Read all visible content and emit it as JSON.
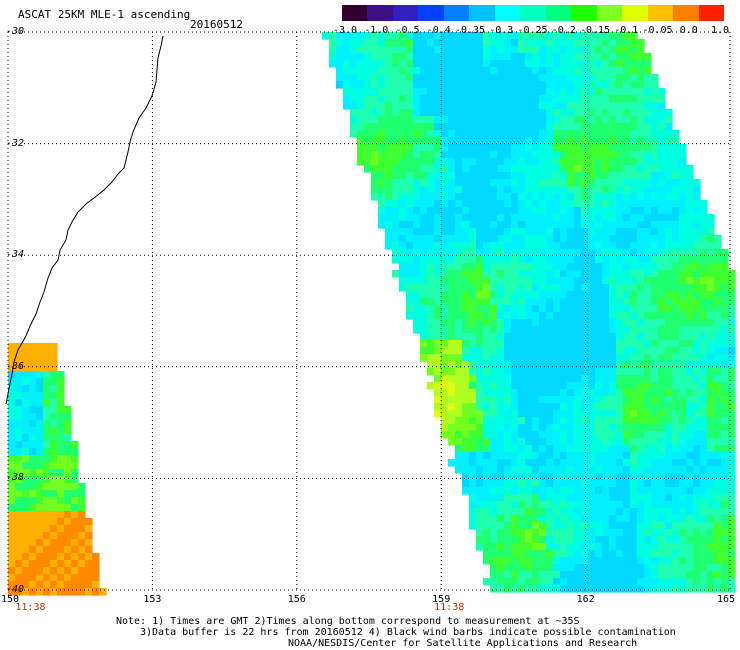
{
  "title": "ASCAT 25KM MLE-1 ascending",
  "date": "20160512",
  "colorbar": {
    "labels": [
      "-3.0",
      "-1.0",
      "-0.5",
      "-0.4",
      "-0.35",
      "-0.3",
      "-0.25",
      "-0.2",
      "-0.15",
      "-0.1",
      "-0.05",
      "0.0",
      "1.0"
    ],
    "colors": [
      "#300030",
      "#3c1080",
      "#3020c0",
      "#0040ff",
      "#0080ff",
      "#00c0ff",
      "#00ffff",
      "#00ffc0",
      "#00ff80",
      "#20ff00",
      "#80ff20",
      "#e0ff00",
      "#ffc000",
      "#ff8000",
      "#ff2000"
    ]
  },
  "map": {
    "lat_labels": [
      "-30",
      "-32",
      "-34",
      "-36",
      "-38",
      "-40"
    ],
    "lat_values": [
      -30,
      -32,
      -34,
      -36,
      -38,
      -40
    ],
    "lon_labels": [
      "150",
      "153",
      "156",
      "159",
      "162",
      "165"
    ],
    "lon_values": [
      150,
      153,
      156,
      159,
      162,
      165
    ],
    "lon_range": [
      150,
      165
    ],
    "lat_range": [
      -40,
      -30
    ],
    "pass_times": [
      {
        "label": "11:38",
        "lon": 150.3
      },
      {
        "label": "11:38",
        "lon": 159
      }
    ],
    "grid": true
  },
  "notes": [
    "Note: 1) Times are GMT 2)Times along bottom correspond to measurement at ~35S",
    "3)Data buffer is 22 hrs from 20160512 4) Black wind barbs indicate possible contamination",
    "NOAA/NESDIS/Center for Satellite Applications and Research"
  ]
}
